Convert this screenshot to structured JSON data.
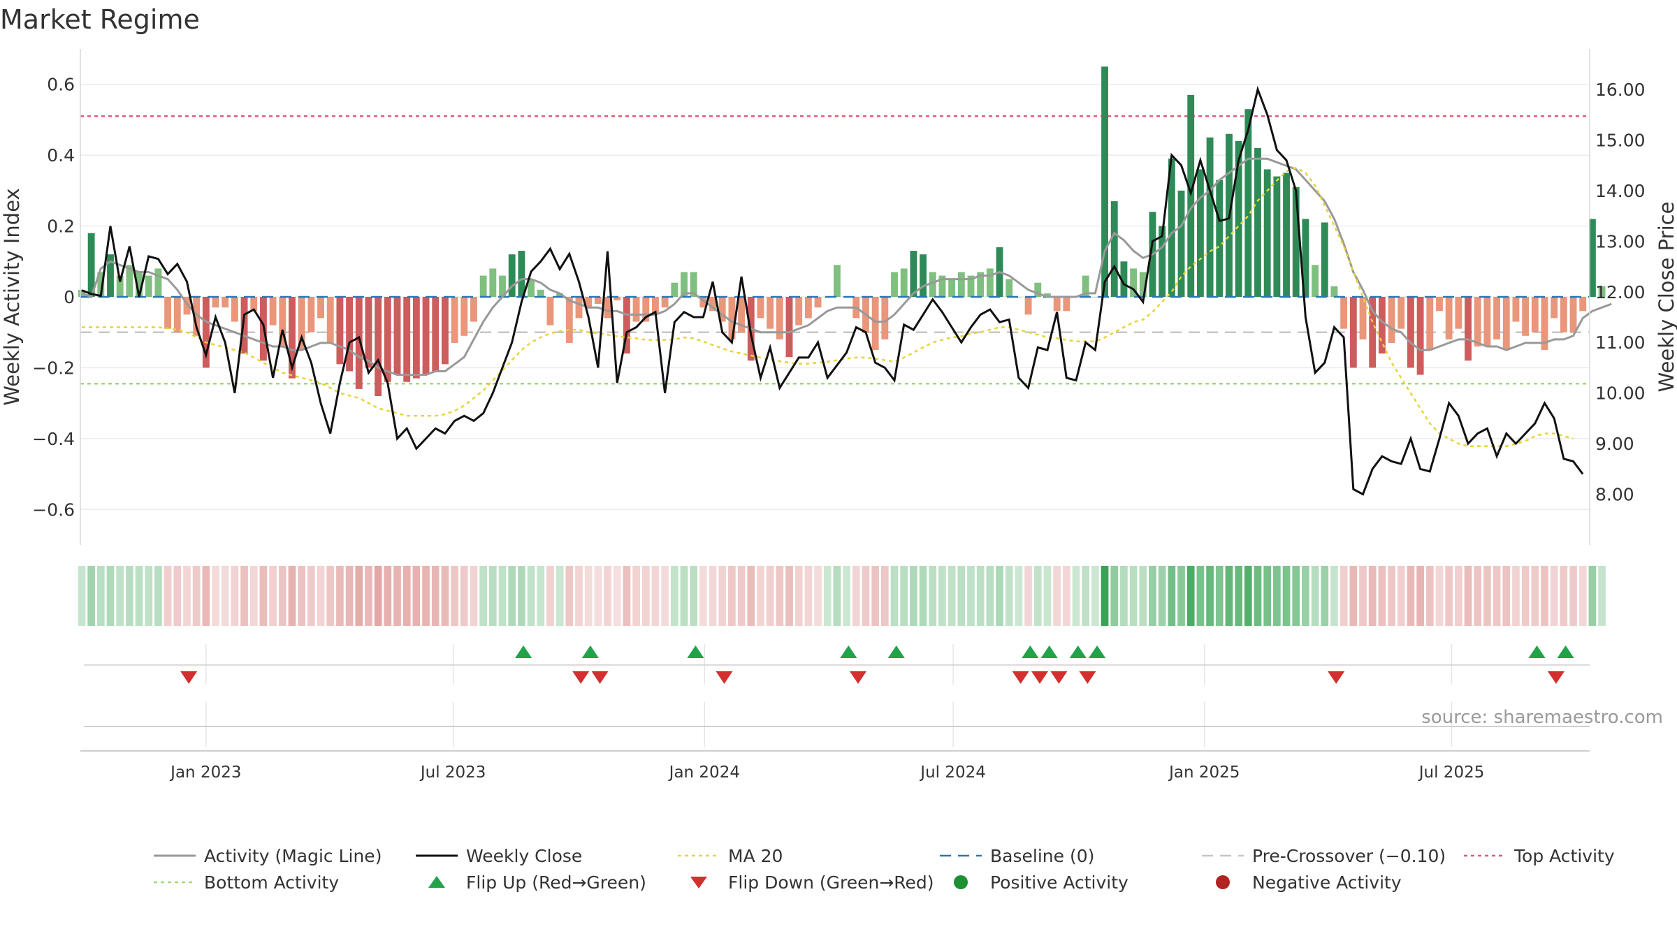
{
  "title": "Market Regime",
  "source_note": "source: sharemaestro.com",
  "colors": {
    "magic_line": "#999999",
    "weekly_close": "#111111",
    "ma20": "#e6d43a",
    "baseline": "#2a76b5",
    "pre_crossover": "#c6c6c6",
    "top_activity": "#e05a78",
    "bottom_activity": "#9fd97b",
    "positive_dark": "#2e8b57",
    "positive_light": "#7fbf7f",
    "negative_dark": "#cd5c5c",
    "negative_light": "#e9967a",
    "flip_up": "#22a34a",
    "flip_down": "#d32f2f",
    "positive_marker": "#1e8f32",
    "negative_marker": "#b22222"
  },
  "legend": [
    {
      "label": "Activity (Magic Line)",
      "kind": "line",
      "color": "#999999"
    },
    {
      "label": "Weekly Close",
      "kind": "line",
      "color": "#111111"
    },
    {
      "label": "MA 20",
      "kind": "dotted",
      "color": "#e6d43a"
    },
    {
      "label": "Baseline (0)",
      "kind": "dashed",
      "color": "#2a76b5"
    },
    {
      "label": "Pre-Crossover (−0.10)",
      "kind": "dashed",
      "color": "#c6c6c6"
    },
    {
      "label": "Top Activity",
      "kind": "dotted",
      "color": "#e05a78"
    },
    {
      "label": "Bottom Activity",
      "kind": "dotted",
      "color": "#9fd97b"
    },
    {
      "label": "Flip Up (Red→Green)",
      "kind": "tri-up",
      "color": "#22a34a"
    },
    {
      "label": "Flip Down (Green→Red)",
      "kind": "tri-down",
      "color": "#d32f2f"
    },
    {
      "label": "Positive Activity",
      "kind": "circle",
      "color": "#1e8f32"
    },
    {
      "label": "Negative Activity",
      "kind": "circle",
      "color": "#b22222"
    }
  ],
  "chart_data": {
    "type": "bar",
    "title": "Market Regime",
    "start_date": "2022-10-02",
    "frequency": "weekly",
    "xlim": [
      "2022-10-01",
      "2025-10-10"
    ],
    "x_ticks": [
      {
        "label": "Jan 2023",
        "date": "2023-01-01"
      },
      {
        "label": "Jul 2023",
        "date": "2023-07-01"
      },
      {
        "label": "Jan 2024",
        "date": "2024-01-01"
      },
      {
        "label": "Jul 2024",
        "date": "2024-07-01"
      },
      {
        "label": "Jan 2025",
        "date": "2025-01-01"
      },
      {
        "label": "Jul 2025",
        "date": "2025-07-01"
      }
    ],
    "y_left": {
      "label": "Weekly Activity Index",
      "lim": [
        -0.7,
        0.7
      ],
      "ticks": [
        -0.6,
        -0.4,
        -0.2,
        0,
        0.2,
        0.4,
        0.6
      ],
      "tick_labels": [
        "−0.6",
        "−0.4",
        "−0.2",
        "0",
        "0.2",
        "0.4",
        "0.6"
      ]
    },
    "y_right": {
      "label": "Weekly Close Price",
      "lim": [
        7.0,
        16.8
      ],
      "ticks": [
        8,
        9,
        10,
        11,
        12,
        13,
        14,
        15,
        16
      ],
      "tick_labels": [
        "8.00",
        "9.00",
        "10.00",
        "11.00",
        "12.00",
        "13.00",
        "14.00",
        "15.00",
        "16.00"
      ]
    },
    "reference_lines": {
      "baseline": 0,
      "pre_crossover": -0.1,
      "top_activity": 0.51,
      "bottom_activity": -0.245
    },
    "activity": [
      0.02,
      0.18,
      0.07,
      0.12,
      0.06,
      0.09,
      0.07,
      0.06,
      0.08,
      -0.09,
      -0.1,
      -0.05,
      -0.11,
      -0.2,
      -0.03,
      -0.03,
      -0.07,
      -0.16,
      -0.04,
      -0.18,
      -0.08,
      -0.14,
      -0.23,
      -0.15,
      -0.1,
      -0.06,
      -0.13,
      -0.19,
      -0.21,
      -0.26,
      -0.2,
      -0.28,
      -0.24,
      -0.22,
      -0.24,
      -0.23,
      -0.22,
      -0.21,
      -0.19,
      -0.13,
      -0.11,
      -0.07,
      0.06,
      0.08,
      0.06,
      0.12,
      0.13,
      0.05,
      0.02,
      -0.08,
      0.01,
      -0.13,
      -0.06,
      -0.03,
      -0.02,
      -0.06,
      -0.01,
      -0.16,
      -0.07,
      -0.07,
      -0.05,
      -0.03,
      0.04,
      0.07,
      0.07,
      -0.03,
      -0.04,
      -0.07,
      -0.12,
      -0.1,
      -0.18,
      -0.06,
      -0.09,
      -0.12,
      -0.17,
      -0.08,
      -0.06,
      -0.03,
      0.0,
      0.09,
      0.0,
      -0.06,
      -0.1,
      -0.15,
      -0.12,
      0.07,
      0.08,
      0.13,
      0.12,
      0.07,
      0.06,
      0.05,
      0.07,
      0.06,
      0.07,
      0.08,
      0.14,
      0.05,
      0.0,
      -0.05,
      0.04,
      0.01,
      -0.04,
      -0.04,
      0.0,
      0.06,
      0.0,
      0.65,
      0.27,
      0.1,
      0.08,
      0.07,
      0.24,
      0.2,
      0.39,
      0.3,
      0.57,
      0.36,
      0.45,
      0.33,
      0.46,
      0.44,
      0.53,
      0.42,
      0.36,
      0.34,
      0.35,
      0.31,
      0.22,
      0.09,
      0.21,
      0.03,
      -0.09,
      -0.2,
      -0.12,
      -0.2,
      -0.16,
      -0.13,
      -0.09,
      -0.2,
      -0.22,
      -0.15,
      -0.04,
      -0.12,
      -0.09,
      -0.18,
      -0.14,
      -0.14,
      -0.12,
      -0.15,
      -0.07,
      -0.11,
      -0.1,
      -0.15,
      -0.06,
      -0.1,
      -0.1,
      -0.04,
      0.22,
      0.03
    ],
    "magic_line": [
      0.01,
      0.0,
      0.08,
      0.1,
      0.09,
      0.08,
      0.07,
      0.07,
      0.06,
      0.05,
      0.02,
      -0.02,
      -0.05,
      -0.07,
      -0.08,
      -0.09,
      -0.1,
      -0.11,
      -0.12,
      -0.13,
      -0.14,
      -0.14,
      -0.15,
      -0.15,
      -0.14,
      -0.13,
      -0.13,
      -0.14,
      -0.15,
      -0.17,
      -0.18,
      -0.2,
      -0.21,
      -0.22,
      -0.22,
      -0.22,
      -0.22,
      -0.21,
      -0.21,
      -0.19,
      -0.17,
      -0.12,
      -0.07,
      -0.03,
      0.0,
      0.03,
      0.05,
      0.05,
      0.04,
      0.02,
      0.01,
      -0.01,
      -0.02,
      -0.03,
      -0.03,
      -0.04,
      -0.04,
      -0.05,
      -0.05,
      -0.05,
      -0.05,
      -0.04,
      -0.02,
      0.01,
      0.01,
      -0.01,
      -0.03,
      -0.05,
      -0.07,
      -0.08,
      -0.09,
      -0.1,
      -0.1,
      -0.1,
      -0.1,
      -0.09,
      -0.08,
      -0.06,
      -0.04,
      -0.03,
      -0.03,
      -0.03,
      -0.05,
      -0.07,
      -0.07,
      -0.05,
      -0.02,
      0.01,
      0.03,
      0.04,
      0.05,
      0.05,
      0.05,
      0.05,
      0.06,
      0.06,
      0.07,
      0.06,
      0.04,
      0.02,
      0.01,
      0.0,
      0.0,
      0.0,
      0.0,
      0.01,
      0.01,
      0.13,
      0.18,
      0.16,
      0.13,
      0.11,
      0.12,
      0.14,
      0.18,
      0.2,
      0.25,
      0.28,
      0.3,
      0.33,
      0.35,
      0.37,
      0.39,
      0.39,
      0.39,
      0.38,
      0.37,
      0.36,
      0.33,
      0.3,
      0.27,
      0.22,
      0.15,
      0.07,
      0.02,
      -0.04,
      -0.07,
      -0.09,
      -0.1,
      -0.13,
      -0.15,
      -0.15,
      -0.14,
      -0.13,
      -0.12,
      -0.12,
      -0.13,
      -0.14,
      -0.14,
      -0.15,
      -0.14,
      -0.13,
      -0.13,
      -0.13,
      -0.12,
      -0.12,
      -0.11,
      -0.06,
      -0.04,
      -0.03,
      -0.02
    ],
    "weekly_close": [
      12.03,
      11.96,
      11.92,
      13.3,
      12.2,
      12.9,
      11.9,
      12.7,
      12.65,
      12.35,
      12.55,
      12.2,
      11.3,
      10.75,
      11.5,
      11.0,
      10.0,
      11.55,
      11.65,
      11.35,
      10.3,
      11.25,
      10.5,
      11.1,
      10.6,
      9.8,
      9.2,
      10.2,
      11.0,
      11.1,
      10.4,
      10.65,
      10.2,
      9.1,
      9.3,
      8.9,
      9.1,
      9.3,
      9.2,
      9.45,
      9.55,
      9.45,
      9.6,
      10.0,
      10.5,
      11.0,
      11.8,
      12.4,
      12.6,
      12.85,
      12.45,
      12.75,
      12.2,
      11.5,
      10.5,
      12.8,
      10.2,
      11.2,
      11.3,
      11.5,
      11.6,
      10.0,
      11.4,
      11.6,
      11.5,
      11.5,
      12.2,
      11.2,
      11.0,
      12.3,
      11.15,
      10.3,
      10.9,
      10.1,
      10.4,
      10.7,
      10.7,
      11.0,
      10.3,
      10.55,
      10.8,
      11.3,
      11.2,
      10.6,
      10.5,
      10.25,
      11.35,
      11.25,
      11.55,
      11.85,
      11.6,
      11.3,
      11.0,
      11.3,
      11.55,
      11.65,
      11.4,
      11.45,
      10.3,
      10.1,
      10.9,
      10.85,
      11.6,
      10.3,
      10.25,
      11.0,
      10.85,
      12.2,
      12.5,
      12.15,
      12.05,
      11.8,
      13.0,
      13.1,
      14.7,
      14.5,
      13.95,
      14.6,
      14.0,
      13.4,
      13.45,
      14.6,
      15.2,
      16.0,
      15.5,
      14.8,
      14.6,
      14.0,
      11.5,
      10.4,
      10.6,
      11.3,
      11.1,
      8.1,
      8.0,
      8.5,
      8.75,
      8.65,
      8.6,
      9.1,
      8.5,
      8.45,
      9.1,
      9.8,
      9.55,
      9.0,
      9.2,
      9.3,
      8.75,
      9.2,
      9.0,
      9.2,
      9.4,
      9.8,
      9.5,
      8.7,
      8.65,
      8.4
    ],
    "ma20": [
      11.3,
      11.3,
      11.3,
      11.3,
      11.3,
      11.3,
      11.3,
      11.3,
      11.3,
      11.28,
      11.25,
      11.2,
      11.1,
      11.0,
      10.95,
      10.9,
      10.85,
      10.8,
      10.7,
      10.6,
      10.5,
      10.4,
      10.35,
      10.3,
      10.25,
      10.2,
      10.1,
      10.0,
      9.95,
      9.9,
      9.8,
      9.7,
      9.65,
      9.6,
      9.55,
      9.55,
      9.55,
      9.55,
      9.58,
      9.65,
      9.75,
      9.9,
      10.05,
      10.25,
      10.45,
      10.65,
      10.85,
      11.0,
      11.1,
      11.18,
      11.22,
      11.25,
      11.25,
      11.2,
      11.18,
      11.15,
      11.12,
      11.1,
      11.08,
      11.05,
      11.05,
      11.05,
      11.06,
      11.1,
      11.08,
      11.02,
      10.95,
      10.88,
      10.82,
      10.78,
      10.74,
      10.7,
      10.66,
      10.63,
      10.6,
      10.58,
      10.58,
      10.6,
      10.62,
      10.65,
      10.68,
      10.7,
      10.7,
      10.68,
      10.65,
      10.62,
      10.7,
      10.8,
      10.9,
      11.0,
      11.05,
      11.1,
      11.12,
      11.18,
      11.2,
      11.25,
      11.3,
      11.3,
      11.25,
      11.2,
      11.15,
      11.1,
      11.08,
      11.05,
      11.02,
      11.02,
      11.02,
      11.1,
      11.2,
      11.3,
      11.4,
      11.45,
      11.6,
      11.8,
      12.0,
      12.3,
      12.5,
      12.65,
      12.8,
      12.9,
      13.1,
      13.3,
      13.5,
      13.8,
      14.0,
      14.2,
      14.38,
      14.45,
      14.35,
      14.1,
      13.7,
      13.3,
      12.9,
      12.4,
      11.9,
      11.4,
      11.0,
      10.6,
      10.3,
      10.0,
      9.7,
      9.4,
      9.2,
      9.1,
      9.0,
      8.95,
      8.95,
      8.95,
      8.95,
      8.95,
      9.0,
      9.05,
      9.15,
      9.2,
      9.2,
      9.15,
      9.1
    ],
    "regime_strip_note": "strip cell color follows the sign and magnitude of each week's activity",
    "flip_up_weeks": [
      46,
      53,
      64,
      80,
      85,
      99,
      101,
      104,
      106,
      152,
      155
    ],
    "flip_down_weeks": [
      11,
      52,
      54,
      67,
      81,
      98,
      100,
      102,
      105,
      131,
      154
    ]
  }
}
